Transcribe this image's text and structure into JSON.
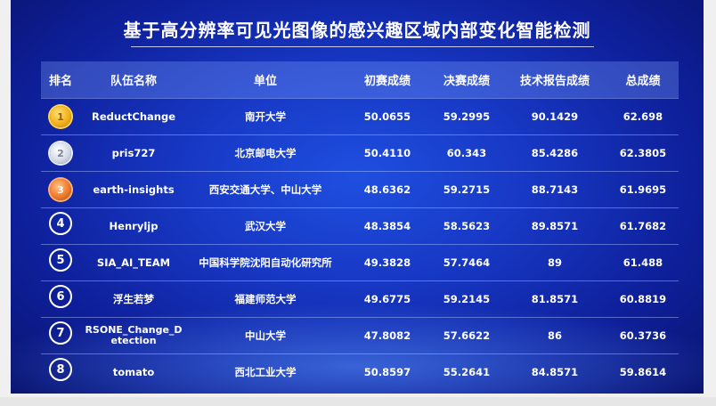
{
  "title": "基于高分辨率可见光图像的感兴趣区域内部变化智能检测",
  "headers": [
    "排名",
    "队伍名称",
    "单位",
    "初赛成绩",
    "决赛成绩",
    "技术报告成绩",
    "总成绩"
  ],
  "rows": [
    {
      "rank": "1",
      "team": "ReductChange",
      "unit": "南开大学",
      "prelim": "50.0655",
      "final": "59.2995",
      "report": "90.1429",
      "total": "62.698"
    },
    {
      "rank": "2",
      "team": "pris727",
      "unit": "北京邮电大学",
      "prelim": "50.4110",
      "final": "60.343",
      "report": "85.4286",
      "total": "62.3805"
    },
    {
      "rank": "3",
      "team": "earth-insights",
      "unit": "西安交通大学、中山大学",
      "prelim": "48.6362",
      "final": "59.2715",
      "report": "88.7143",
      "total": "61.9695"
    },
    {
      "rank": "4",
      "team": "Henryljp",
      "unit": "武汉大学",
      "prelim": "48.3854",
      "final": "58.5623",
      "report": "89.8571",
      "total": "61.7682"
    },
    {
      "rank": "5",
      "team": "SIA_AI_TEAM",
      "unit": "中国科学院沈阳自动化研究所",
      "prelim": "49.3828",
      "final": "57.7464",
      "report": "89",
      "total": "61.488"
    },
    {
      "rank": "6",
      "team": "浮生若梦",
      "unit": "福建师范大学",
      "prelim": "49.6775",
      "final": "59.2145",
      "report": "81.8571",
      "total": "60.8819"
    },
    {
      "rank": "7",
      "team": "RSONE_Change_Detection",
      "unit": "中山大学",
      "prelim": "47.8082",
      "final": "57.6622",
      "report": "86",
      "total": "60.3736"
    },
    {
      "rank": "8",
      "team": "tomato",
      "unit": "西北工业大学",
      "prelim": "50.8597",
      "final": "55.2641",
      "report": "84.8571",
      "total": "59.8614"
    }
  ],
  "rank_icons": [
    "gold-medal-icon",
    "silver-medal-icon",
    "bronze-medal-icon"
  ]
}
